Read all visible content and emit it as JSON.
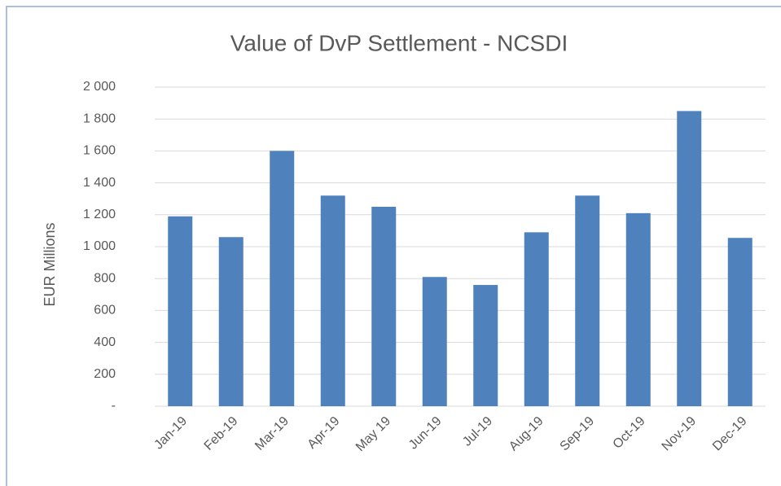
{
  "chart_data": {
    "type": "bar",
    "title": "Value of DvP Settlement - NCSDI",
    "y_axis_label": "EUR Millions",
    "categories": [
      "Jan-19",
      "Feb-19",
      "Mar-19",
      "Apr-19",
      "May 19",
      "Jun-19",
      "Jul-19",
      "Aug-19",
      "Sep-19",
      "Oct-19",
      "Nov-19",
      "Dec-19"
    ],
    "values": [
      1190,
      1060,
      1600,
      1320,
      1250,
      810,
      760,
      1090,
      1320,
      1210,
      1850,
      1055
    ],
    "color": "#4f81bd",
    "ylim": [
      0,
      2000
    ],
    "yticks": [
      {
        "value": 0,
        "label": "-"
      },
      200,
      400,
      600,
      800,
      {
        "value": 1000,
        "label": "1 000"
      },
      {
        "value": 1200,
        "label": "1 200"
      },
      {
        "value": 1400,
        "label": "1 400"
      },
      {
        "value": 1600,
        "label": "1 600"
      },
      {
        "value": 1800,
        "label": "1 800"
      },
      {
        "value": 2000,
        "label": "2 000"
      }
    ],
    "grid": true
  }
}
